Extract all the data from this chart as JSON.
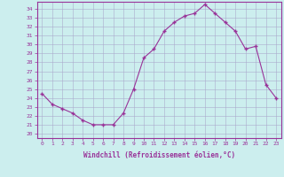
{
  "x": [
    0,
    1,
    2,
    3,
    4,
    5,
    6,
    7,
    8,
    9,
    10,
    11,
    12,
    13,
    14,
    15,
    16,
    17,
    18,
    19,
    20,
    21,
    22,
    23
  ],
  "y": [
    24.5,
    23.3,
    22.8,
    22.3,
    21.5,
    21.0,
    21.0,
    21.0,
    22.3,
    25.0,
    28.5,
    29.5,
    31.5,
    32.5,
    33.2,
    33.5,
    34.5,
    33.5,
    32.5,
    31.5,
    29.5,
    29.8,
    25.5,
    24.0
  ],
  "line_color": "#993399",
  "marker": "+",
  "bg_color": "#cceeee",
  "grid_color": "#aaaacc",
  "xlabel": "Windchill (Refroidissement éolien,°C)",
  "ylabel_ticks": [
    20,
    21,
    22,
    23,
    24,
    25,
    26,
    27,
    28,
    29,
    30,
    31,
    32,
    33,
    34
  ],
  "ylim": [
    19.5,
    34.8
  ],
  "xlim": [
    -0.5,
    23.5
  ],
  "tick_label_color": "#993399",
  "xlabel_color": "#993399",
  "figsize": [
    3.2,
    2.0
  ],
  "dpi": 100
}
